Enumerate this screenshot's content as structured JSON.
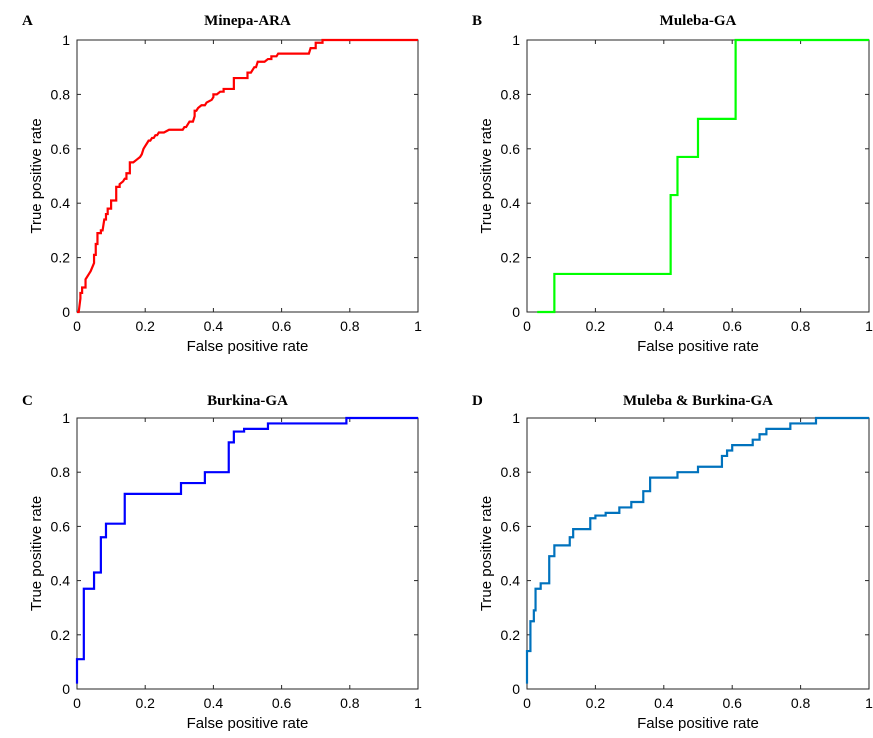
{
  "chart_data": [
    {
      "type": "line",
      "panel_label": "A",
      "title": "Minepa-ARA",
      "xlabel": "False positive rate",
      "ylabel": "True positive rate",
      "xlim": [
        0,
        1
      ],
      "ylim": [
        0,
        1
      ],
      "xticks": [
        0,
        0.2,
        0.4,
        0.6,
        0.8,
        1
      ],
      "yticks": [
        0,
        0.2,
        0.4,
        0.6,
        0.8,
        1
      ],
      "xtick_labels": [
        "0",
        "0.2",
        "0.4",
        "0.6",
        "0.8",
        "1"
      ],
      "ytick_labels": [
        "0",
        "0.2",
        "0.4",
        "0.6",
        "0.8",
        "1"
      ],
      "grid": false,
      "color": "#ff0000",
      "step": false,
      "series": [
        {
          "x": [
            0,
            0.005,
            0.01,
            0.01,
            0.015,
            0.015,
            0.025,
            0.025,
            0.035,
            0.04,
            0.05,
            0.05,
            0.055,
            0.055,
            0.06,
            0.06,
            0.07,
            0.07,
            0.075,
            0.08,
            0.085,
            0.085,
            0.09,
            0.09,
            0.1,
            0.1,
            0.115,
            0.115,
            0.125,
            0.125,
            0.135,
            0.14,
            0.145,
            0.145,
            0.155,
            0.155,
            0.165,
            0.175,
            0.185,
            0.19,
            0.195,
            0.2,
            0.205,
            0.21,
            0.215,
            0.22,
            0.225,
            0.23,
            0.235,
            0.24,
            0.255,
            0.255,
            0.27,
            0.28,
            0.28,
            0.31,
            0.315,
            0.32,
            0.325,
            0.33,
            0.34,
            0.345,
            0.345,
            0.35,
            0.355,
            0.365,
            0.375,
            0.38,
            0.395,
            0.4,
            0.4,
            0.41,
            0.42,
            0.43,
            0.43,
            0.445,
            0.45,
            0.46,
            0.46,
            0.47,
            0.49,
            0.5,
            0.5,
            0.51,
            0.52,
            0.525,
            0.53,
            0.54,
            0.55,
            0.56,
            0.57,
            0.57,
            0.58,
            0.585,
            0.59,
            0.6,
            0.6,
            0.625,
            0.64,
            0.66,
            0.68,
            0.685,
            0.69,
            0.7,
            0.7,
            0.71,
            0.72,
            0.72,
            0.74,
            0.8,
            0.9,
            1.0
          ],
          "y": [
            0,
            0,
            0.05,
            0.07,
            0.07,
            0.09,
            0.09,
            0.12,
            0.14,
            0.15,
            0.18,
            0.21,
            0.21,
            0.25,
            0.25,
            0.29,
            0.29,
            0.3,
            0.3,
            0.34,
            0.34,
            0.36,
            0.36,
            0.38,
            0.38,
            0.41,
            0.41,
            0.46,
            0.46,
            0.47,
            0.48,
            0.49,
            0.49,
            0.51,
            0.51,
            0.55,
            0.55,
            0.56,
            0.57,
            0.58,
            0.6,
            0.61,
            0.62,
            0.63,
            0.63,
            0.64,
            0.64,
            0.65,
            0.65,
            0.66,
            0.66,
            0.66,
            0.67,
            0.67,
            0.67,
            0.67,
            0.68,
            0.68,
            0.69,
            0.7,
            0.7,
            0.72,
            0.74,
            0.74,
            0.75,
            0.76,
            0.76,
            0.77,
            0.78,
            0.79,
            0.8,
            0.8,
            0.81,
            0.81,
            0.82,
            0.82,
            0.82,
            0.82,
            0.86,
            0.86,
            0.86,
            0.86,
            0.88,
            0.88,
            0.9,
            0.9,
            0.92,
            0.92,
            0.92,
            0.93,
            0.93,
            0.94,
            0.94,
            0.94,
            0.95,
            0.95,
            0.95,
            0.95,
            0.95,
            0.95,
            0.95,
            0.97,
            0.97,
            0.97,
            0.99,
            0.99,
            0.99,
            1.0,
            1.0,
            1.0,
            1.0,
            1.0
          ]
        }
      ]
    },
    {
      "type": "line",
      "panel_label": "B",
      "title": "Muleba-GA",
      "xlabel": "False positive rate",
      "ylabel": "True positive rate",
      "xlim": [
        0,
        1
      ],
      "ylim": [
        0,
        1
      ],
      "xticks": [
        0,
        0.2,
        0.4,
        0.6,
        0.8,
        1
      ],
      "yticks": [
        0,
        0.2,
        0.4,
        0.6,
        0.8,
        1
      ],
      "xtick_labels": [
        "0",
        "0.2",
        "0.4",
        "0.6",
        "0.8",
        "1"
      ],
      "ytick_labels": [
        "0",
        "0.2",
        "0.4",
        "0.6",
        "0.8",
        "1"
      ],
      "grid": false,
      "color": "#00ff00",
      "step": true,
      "series": [
        {
          "x": [
            0.03,
            0.08,
            0.08,
            0.42,
            0.42,
            0.44,
            0.44,
            0.5,
            0.5,
            0.61,
            0.61,
            1.0
          ],
          "y": [
            0,
            0,
            0.14,
            0.14,
            0.43,
            0.43,
            0.57,
            0.57,
            0.71,
            0.71,
            1.0,
            1.0
          ]
        }
      ]
    },
    {
      "type": "line",
      "panel_label": "C",
      "title": "Burkina-GA",
      "xlabel": "False positive rate",
      "ylabel": "True positive rate",
      "xlim": [
        0,
        1
      ],
      "ylim": [
        0,
        1
      ],
      "xticks": [
        0,
        0.2,
        0.4,
        0.6,
        0.8,
        1
      ],
      "yticks": [
        0,
        0.2,
        0.4,
        0.6,
        0.8,
        1
      ],
      "xtick_labels": [
        "0",
        "0.2",
        "0.4",
        "0.6",
        "0.8",
        "1"
      ],
      "ytick_labels": [
        "0",
        "0.2",
        "0.4",
        "0.6",
        "0.8",
        "1"
      ],
      "grid": false,
      "color": "#0000ff",
      "step": true,
      "series": [
        {
          "x": [
            0,
            0,
            0.02,
            0.02,
            0.05,
            0.05,
            0.07,
            0.07,
            0.085,
            0.085,
            0.14,
            0.14,
            0.305,
            0.305,
            0.375,
            0.375,
            0.445,
            0.445,
            0.46,
            0.46,
            0.49,
            0.49,
            0.56,
            0.56,
            0.79,
            0.79,
            1.0
          ],
          "y": [
            0.02,
            0.11,
            0.11,
            0.37,
            0.37,
            0.43,
            0.43,
            0.56,
            0.56,
            0.61,
            0.61,
            0.72,
            0.72,
            0.76,
            0.76,
            0.8,
            0.8,
            0.91,
            0.91,
            0.95,
            0.95,
            0.96,
            0.96,
            0.98,
            0.98,
            1.0,
            1.0
          ]
        }
      ]
    },
    {
      "type": "line",
      "panel_label": "D",
      "title": "Muleba & Burkina-GA",
      "xlabel": "False positive rate",
      "ylabel": "True positive rate",
      "xlim": [
        0,
        1
      ],
      "ylim": [
        0,
        1
      ],
      "xticks": [
        0,
        0.2,
        0.4,
        0.6,
        0.8,
        1
      ],
      "yticks": [
        0,
        0.2,
        0.4,
        0.6,
        0.8,
        1
      ],
      "xtick_labels": [
        "0",
        "0.2",
        "0.4",
        "0.6",
        "0.8",
        "1"
      ],
      "ytick_labels": [
        "0",
        "0.2",
        "0.4",
        "0.6",
        "0.8",
        "1"
      ],
      "grid": false,
      "color": "#0072bd",
      "step": true,
      "series": [
        {
          "x": [
            0,
            0,
            0.01,
            0.01,
            0.02,
            0.02,
            0.025,
            0.025,
            0.04,
            0.04,
            0.065,
            0.065,
            0.08,
            0.08,
            0.125,
            0.125,
            0.135,
            0.135,
            0.185,
            0.185,
            0.2,
            0.2,
            0.23,
            0.23,
            0.27,
            0.27,
            0.305,
            0.305,
            0.34,
            0.34,
            0.36,
            0.36,
            0.44,
            0.44,
            0.5,
            0.5,
            0.57,
            0.57,
            0.585,
            0.585,
            0.6,
            0.6,
            0.66,
            0.66,
            0.68,
            0.68,
            0.7,
            0.7,
            0.77,
            0.77,
            0.845,
            0.845,
            0.9,
            1.0
          ],
          "y": [
            0.02,
            0.14,
            0.14,
            0.25,
            0.25,
            0.29,
            0.29,
            0.37,
            0.37,
            0.39,
            0.39,
            0.49,
            0.49,
            0.53,
            0.53,
            0.56,
            0.56,
            0.59,
            0.59,
            0.63,
            0.63,
            0.64,
            0.64,
            0.65,
            0.65,
            0.67,
            0.67,
            0.69,
            0.69,
            0.73,
            0.73,
            0.78,
            0.78,
            0.8,
            0.8,
            0.82,
            0.82,
            0.86,
            0.86,
            0.88,
            0.88,
            0.9,
            0.9,
            0.92,
            0.92,
            0.94,
            0.94,
            0.96,
            0.96,
            0.98,
            0.98,
            1.0,
            1.0,
            1.0
          ]
        }
      ]
    }
  ]
}
